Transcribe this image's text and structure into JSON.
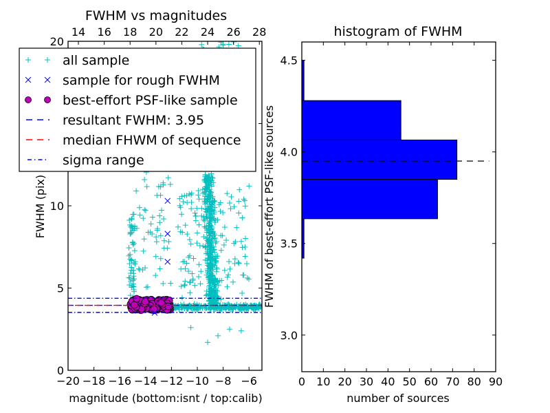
{
  "chart_data": [
    {
      "type": "scatter",
      "title": "FWHM vs magnitudes",
      "xlabel": "magnitude (bottom:isnt / top:calib)",
      "ylabel": "FWHM (pix)",
      "xlim": [
        -20,
        -5
      ],
      "ylim": [
        0,
        20
      ],
      "xticks": [
        -20,
        -18,
        -16,
        -14,
        -12,
        -10,
        -8,
        -6
      ],
      "xtick_labels": [
        "−20",
        "−18",
        "−16",
        "−14",
        "−12",
        "−10",
        "−8",
        "−6"
      ],
      "yticks": [
        0,
        5,
        10,
        20
      ],
      "ytick_labels": [
        "0",
        "5",
        "10",
        "20"
      ],
      "top_xlim": [
        13.2,
        28.2
      ],
      "top_xticks": [
        14,
        16,
        18,
        20,
        22,
        24,
        26,
        28
      ],
      "top_xtick_labels": [
        "14",
        "16",
        "18",
        "20",
        "22",
        "24",
        "26",
        "28"
      ],
      "legend_location": "upper-left",
      "legend": [
        {
          "label": "all sample",
          "marker": "plus",
          "color": "#00bfbf"
        },
        {
          "label": "sample for rough FWHM",
          "marker": "x",
          "color": "#0000ff"
        },
        {
          "label": "best-effort PSF-like sample",
          "marker": "circle",
          "color": "#bf00bf"
        },
        {
          "label": "resultant FWHM: 3.95",
          "marker": "dashed-line",
          "color": "#0000ff"
        },
        {
          "label": "median FHWM of sequence",
          "marker": "dashed-line",
          "color": "#ff0000"
        },
        {
          "label": "sigma range",
          "marker": "dashdot-line",
          "color": "#0000ff"
        }
      ],
      "series": [
        {
          "name": "all sample",
          "color": "#00bfbf",
          "marker": "plus",
          "clusters": [
            {
              "x_range": [
                -15.3,
                -14.8
              ],
              "y_range": [
                3.8,
                9.5
              ],
              "count": 60
            },
            {
              "x_range": [
                -14.8,
                -12.0
              ],
              "y_range": [
                5.0,
                14.0
              ],
              "count": 70
            },
            {
              "x_range": [
                -12.0,
                -5.0
              ],
              "y_range": [
                3.4,
                4.3
              ],
              "count": 260
            },
            {
              "x_range": [
                -9.6,
                -7.8
              ],
              "y_range": [
                4.0,
                12.0
              ],
              "count": 420
            },
            {
              "x_range": [
                -11.5,
                -6.0
              ],
              "y_range": [
                4.3,
                11.0
              ],
              "count": 140
            },
            {
              "x_range": [
                -10.0,
                -6.5
              ],
              "y_range": [
                12.0,
                20.0
              ],
              "count": 90
            }
          ],
          "outliers": [
            [
              -11.9,
              19.3
            ],
            [
              -10.2,
              19.4
            ],
            [
              -9.7,
              19.2
            ],
            [
              -9.5,
              19.5
            ],
            [
              -6.0,
              11.2
            ],
            [
              -8.4,
              2.1
            ],
            [
              -9.2,
              1.7
            ],
            [
              -7.5,
              2.5
            ],
            [
              -10.5,
              2.6
            ],
            [
              -6.6,
              2.4
            ]
          ]
        },
        {
          "name": "sample for rough FWHM",
          "color": "#0000ff",
          "marker": "x",
          "points": [
            [
              -12.3,
              10.3
            ],
            [
              -12.3,
              8.3
            ],
            [
              -12.3,
              6.6
            ],
            [
              -13.3,
              3.5
            ]
          ]
        },
        {
          "name": "best-effort PSF-like sample",
          "color": "#bf00bf",
          "marker": "circle",
          "x_range": [
            -15.2,
            -12.1
          ],
          "y_range": [
            3.65,
            4.3
          ],
          "count": 180,
          "outliers": [
            [
              -14.7,
              4.35
            ]
          ]
        }
      ],
      "hlines": [
        {
          "name": "resultant FWHM",
          "y": 3.95,
          "color": "#0000ff",
          "style": "dashed"
        },
        {
          "name": "median FWHM of sequence",
          "y": 3.95,
          "color": "#ff0000",
          "style": "dashed"
        },
        {
          "name": "sigma upper",
          "y": 4.38,
          "color": "#0000ff",
          "style": "dashdot"
        },
        {
          "name": "sigma lower",
          "y": 3.52,
          "color": "#0000ff",
          "style": "dashdot"
        }
      ]
    },
    {
      "type": "bar",
      "orientation": "horizontal",
      "title": "histogram of FWHM",
      "xlabel": "number of sources",
      "ylabel": "FWHM of best-effort PSF-like sources",
      "xlim": [
        0,
        90
      ],
      "ylim": [
        2.8,
        4.6
      ],
      "xticks": [
        0,
        10,
        20,
        30,
        40,
        50,
        60,
        70,
        80,
        90
      ],
      "xtick_labels": [
        "0",
        "10",
        "20",
        "30",
        "40",
        "50",
        "60",
        "70",
        "80",
        "90"
      ],
      "yticks": [
        3.0,
        3.5,
        4.0,
        4.5
      ],
      "ytick_labels": [
        "3.0",
        "3.5",
        "4.0",
        "4.5"
      ],
      "bar_color": "#0000ff",
      "bins": [
        {
          "low": 3.42,
          "high": 3.635,
          "count": 1
        },
        {
          "low": 3.635,
          "high": 3.85,
          "count": 63
        },
        {
          "low": 3.85,
          "high": 4.065,
          "count": 72
        },
        {
          "low": 4.065,
          "high": 4.28,
          "count": 46
        },
        {
          "low": 4.28,
          "high": 4.5,
          "count": 1
        }
      ],
      "hlines": [
        {
          "name": "resultant FWHM",
          "y": 3.95,
          "color": "#000000",
          "style": "dashed",
          "x_extent": [
            0,
            87
          ]
        }
      ]
    }
  ]
}
